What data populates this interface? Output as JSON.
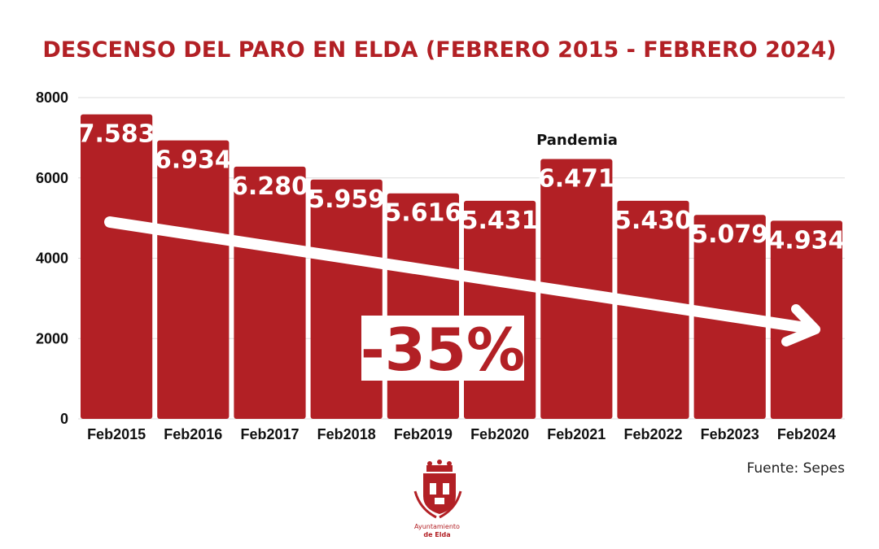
{
  "chart_data": {
    "type": "bar",
    "title": "DESCENSO DEL PARO EN ELDA (FEBRERO 2015 - FEBRERO 2024)",
    "categories": [
      "Feb2015",
      "Feb2016",
      "Feb2017",
      "Feb2018",
      "Feb2019",
      "Feb2020",
      "Feb2021",
      "Feb2022",
      "Feb2023",
      "Feb2024"
    ],
    "values": [
      7583,
      6934,
      6280,
      5959,
      5616,
      5431,
      6471,
      5430,
      5079,
      4934
    ],
    "value_labels": [
      "7.583",
      "6.934",
      "6.280",
      "5.959",
      "5.616",
      "5.431",
      "6.471",
      "5.430",
      "5.079",
      "4.934"
    ],
    "yticks": [
      "0",
      "2000",
      "4000",
      "6000",
      "8000"
    ],
    "ylim": [
      0,
      8000
    ],
    "xlabel": "",
    "ylabel": "",
    "grid": true,
    "annotations": {
      "pandemic_label": "Pandemia",
      "percent_change": "-35%"
    },
    "colors": {
      "bar": "#b22025",
      "title": "#b22025",
      "grid": "#dddddd"
    }
  },
  "source": "Fuente: Sepes",
  "logo": {
    "line1": "Ayuntamiento",
    "line2": "de Elda"
  }
}
